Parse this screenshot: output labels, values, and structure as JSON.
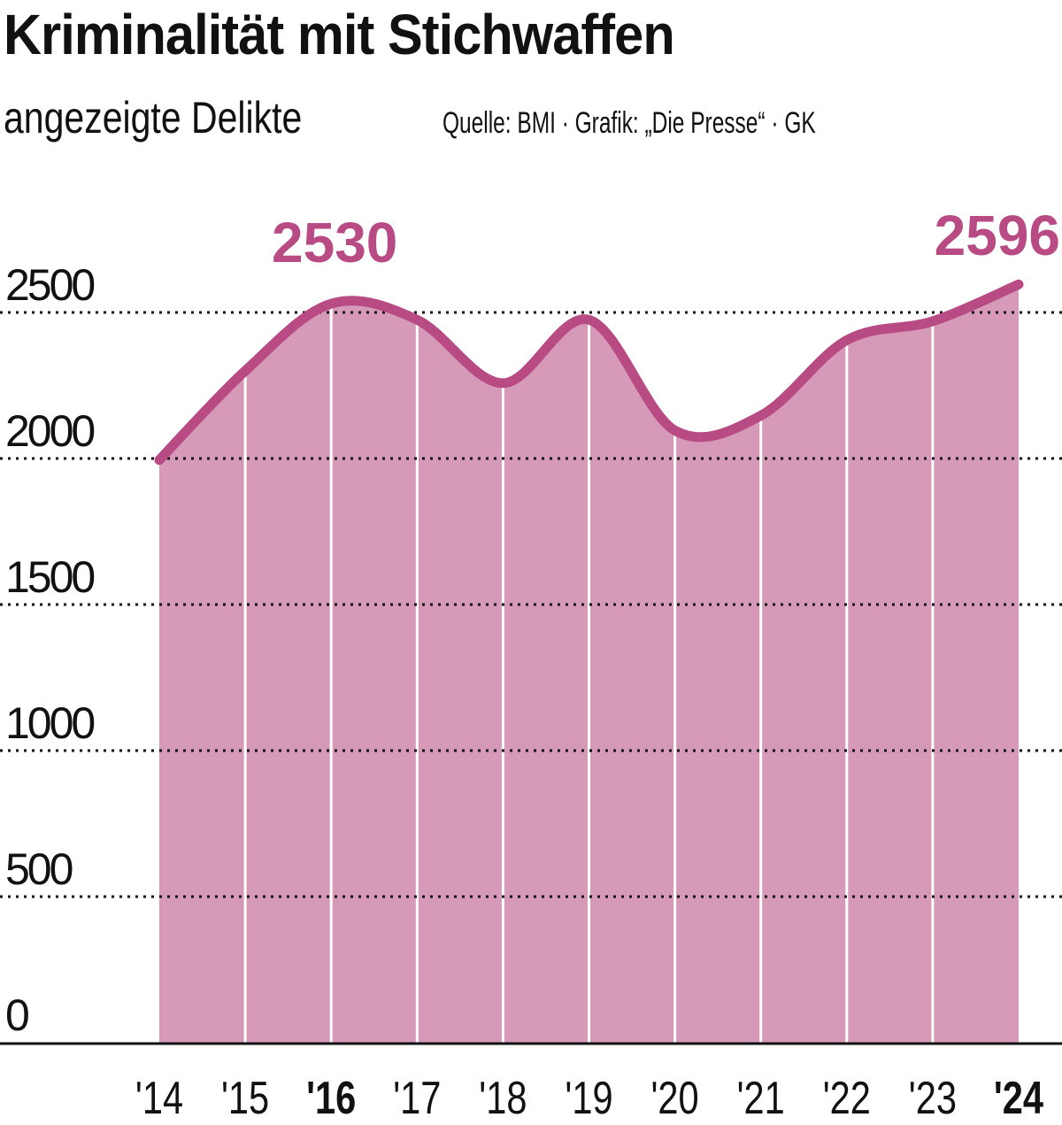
{
  "chart_data": {
    "type": "area",
    "title": "Kriminalität mit Stichwaffen",
    "subtitle": "angezeigte Delikte",
    "source": "Quelle: BMI · Grafik: „Die Presse“ · GK",
    "xlabel": "",
    "ylabel": "",
    "categories": [
      "'14",
      "'15",
      "'16",
      "'17",
      "'18",
      "'19",
      "'20",
      "'21",
      "'22",
      "'23",
      "'24"
    ],
    "bold_categories": [
      "'16",
      "'24"
    ],
    "values": [
      1995,
      2300,
      2530,
      2475,
      2258,
      2475,
      2096,
      2147,
      2405,
      2470,
      2596
    ],
    "yticks": [
      "0",
      "500",
      "1000",
      "1500",
      "2000",
      "2500"
    ],
    "ytick_values": [
      0,
      500,
      1000,
      1500,
      2000,
      2500
    ],
    "ylim": [
      0,
      2700
    ],
    "grid": true,
    "annotations": [
      {
        "category": "'16",
        "label": "2530"
      },
      {
        "category": "'24",
        "label": "2596"
      }
    ],
    "colors": {
      "fill": "#d69ab8",
      "line": "#b84a84",
      "label": "#b84a84"
    }
  }
}
